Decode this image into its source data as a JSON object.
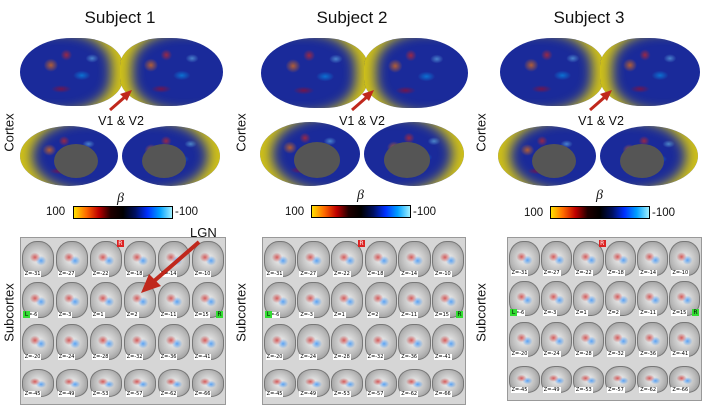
{
  "subjects": [
    {
      "title": "Subject 1",
      "v_label": "V1 & V2",
      "scale_max": "100",
      "scale_min": "-100",
      "beta": "β"
    },
    {
      "title": "Subject 2",
      "v_label": "V1 & V2",
      "scale_max": "100",
      "scale_min": "-100",
      "beta": "β"
    },
    {
      "title": "Subject 3",
      "v_label": "V1 & V2",
      "scale_max": "100",
      "scale_min": "-100",
      "beta": "β"
    }
  ],
  "row_labels": {
    "cortex": "Cortex",
    "subcortex": "Subcortex"
  },
  "annotation": {
    "lgn": "LGN"
  },
  "colors": {
    "arrow": "#c0281c",
    "highlight": "#f0dc00",
    "brain_base": "#1a2a9a"
  },
  "slice_labels": {
    "row1": [
      "Z=-31",
      "Z=-27",
      "Z=-22",
      "Z=-18",
      "Z=-14",
      "Z=-10"
    ],
    "row2": [
      "Z=-6",
      "Z=-3",
      "Z=1",
      "Z=2",
      "Z=-11",
      "Z=15"
    ],
    "row3": [
      "Z=-20",
      "Z=-24",
      "Z=-28",
      "Z=-32",
      "Z=-36",
      "Z=-41"
    ],
    "row4": [
      "Z=-45",
      "Z=-49",
      "Z=-53",
      "Z=-57",
      "Z=-62",
      "Z=-66"
    ]
  },
  "lr_marks": {
    "left": "L",
    "right": "R"
  }
}
